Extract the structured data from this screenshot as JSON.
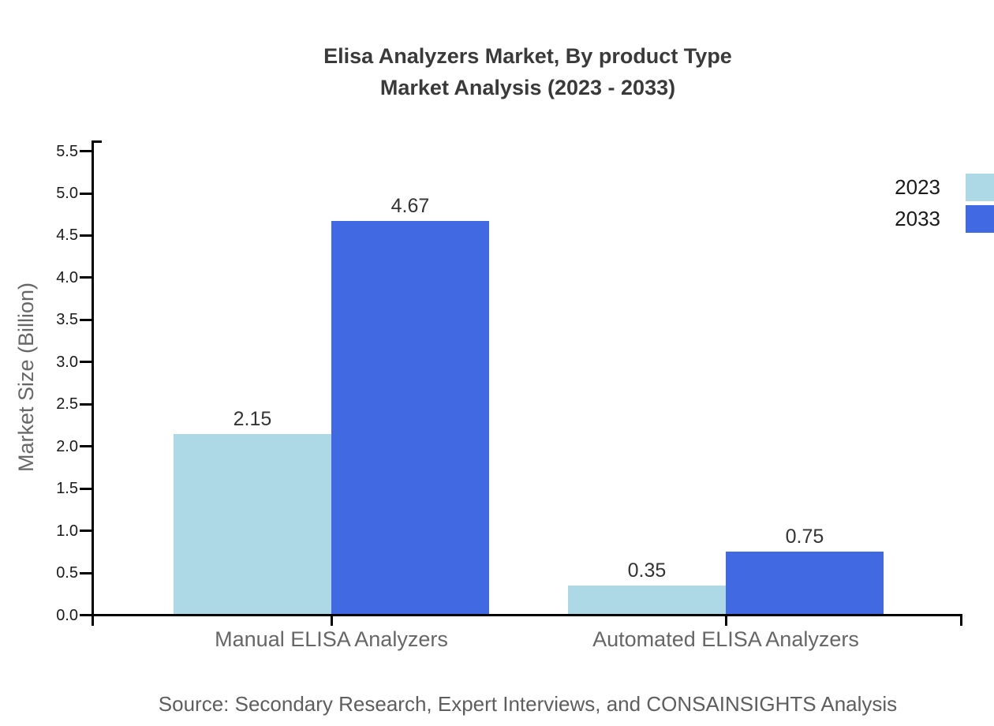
{
  "chart_data": {
    "type": "bar",
    "title_lines": [
      "Elisa Analyzers Market, By product Type",
      "Market Analysis (2023 - 2033)"
    ],
    "categories": [
      "Manual ELISA Analyzers",
      "Automated ELISA Analyzers"
    ],
    "series": [
      {
        "name": "2023",
        "color": "#ADD8E6",
        "values": [
          2.15,
          0.35
        ]
      },
      {
        "name": "2033",
        "color": "#4169E1",
        "values": [
          4.67,
          0.75
        ]
      }
    ],
    "xlabel": "",
    "ylabel": "Market Size (Billion)",
    "ylim": [
      0,
      5.5
    ],
    "yticks": [
      0,
      0.5,
      1,
      1.5,
      2,
      2.5,
      3,
      3.5,
      4,
      4.5,
      5,
      5.5
    ],
    "grid": false,
    "legend_position": "top-right",
    "value_labels_shown": true,
    "axis_color": "#000000"
  },
  "source_note": "Source: Secondary Research, Expert Interviews, and CONSAINSIGHTS Analysis"
}
